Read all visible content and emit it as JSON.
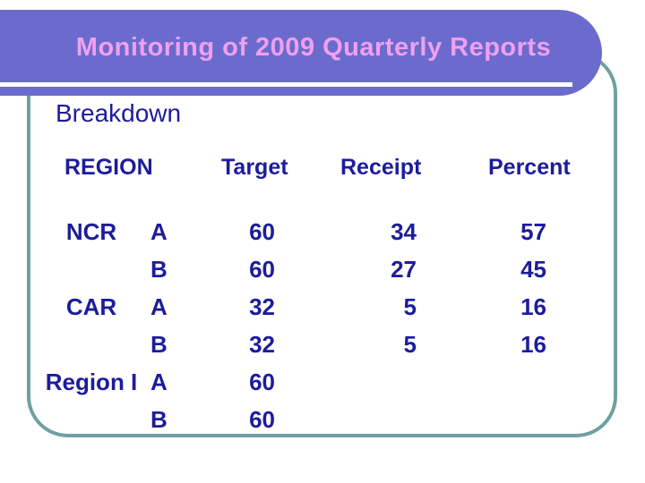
{
  "slide": {
    "title": "Monitoring of 2009 Quarterly Reports",
    "subtitle": "Breakdown"
  },
  "table": {
    "columns": [
      "REGION",
      "Target",
      "Receipt",
      "Percent"
    ],
    "rows": [
      {
        "region": "NCR",
        "group": "A",
        "target": "60",
        "receipt": "34",
        "percent": "57"
      },
      {
        "region": "",
        "group": "B",
        "target": "60",
        "receipt": "27",
        "percent": "45"
      },
      {
        "region": "CAR",
        "group": "A",
        "target": "32",
        "receipt": "5",
        "percent": "16"
      },
      {
        "region": "",
        "group": "B",
        "target": "32",
        "receipt": "5",
        "percent": "16"
      },
      {
        "region": "Region I",
        "group": "A",
        "target": "60",
        "receipt": "",
        "percent": ""
      },
      {
        "region": "",
        "group": "B",
        "target": "60",
        "receipt": "",
        "percent": ""
      }
    ]
  },
  "colors": {
    "banner": "#6B6BCE",
    "title_text": "#F0A0F0",
    "body_text": "#1C1C9C",
    "frame_border": "#6FA0A1"
  }
}
